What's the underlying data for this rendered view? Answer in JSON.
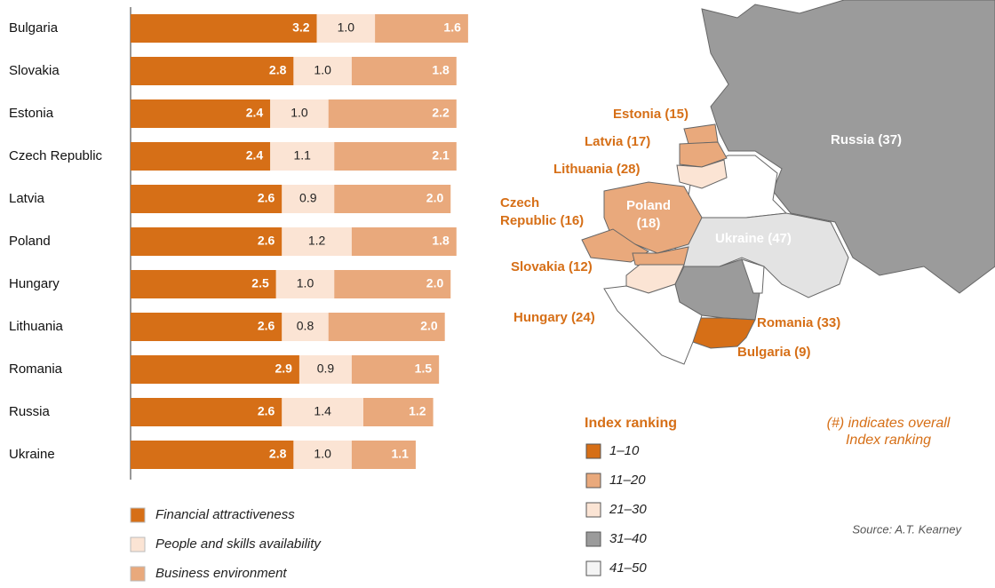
{
  "chart_data": {
    "type": "stacked-bar-horizontal",
    "categories": [
      "Bulgaria",
      "Slovakia",
      "Estonia",
      "Czech Republic",
      "Latvia",
      "Poland",
      "Hungary",
      "Lithuania",
      "Romania",
      "Russia",
      "Ukraine"
    ],
    "series": [
      {
        "name": "Financial attractiveness",
        "color": "#d66f17",
        "values": [
          3.2,
          2.8,
          2.4,
          2.4,
          2.6,
          2.6,
          2.5,
          2.6,
          2.9,
          2.6,
          2.8
        ],
        "value_labels": [
          "3.2",
          "2.8",
          "2.4",
          "2.4",
          "2.6",
          "2.6",
          "2.5",
          "2.6",
          "2.9",
          "2.6",
          "2.8"
        ]
      },
      {
        "name": "People and skills availability",
        "color": "#fbe4d4",
        "values": [
          1.0,
          1.0,
          1.0,
          1.1,
          0.9,
          1.2,
          1.0,
          0.8,
          0.9,
          1.4,
          1.0
        ],
        "value_labels": [
          "1.0",
          "1.0",
          "1.0",
          "1.1",
          "0.9",
          "1.2",
          "1.0",
          "0.8",
          "0.9",
          "1.4",
          "1.0"
        ]
      },
      {
        "name": "Business environment",
        "color": "#e9a97c",
        "values": [
          1.6,
          1.8,
          2.2,
          2.1,
          2.0,
          1.8,
          2.0,
          2.0,
          1.5,
          1.2,
          1.1
        ],
        "value_labels": [
          "1.6",
          "1.8",
          "2.2",
          "2.1",
          "2.0",
          "1.8",
          "2.0",
          "2.0",
          "1.5",
          "1.2",
          "1.1"
        ]
      }
    ],
    "xlim": [
      0,
      6
    ]
  },
  "map": {
    "labels": [
      {
        "lines": [
          "Estonia (15)"
        ]
      },
      {
        "lines": [
          "Latvia (17)"
        ]
      },
      {
        "lines": [
          "Lithuania (28)"
        ]
      },
      {
        "lines": [
          "Czech",
          "Republic (16)"
        ]
      },
      {
        "lines": [
          "Poland",
          "(18)"
        ]
      },
      {
        "lines": [
          "Slovakia (12)"
        ]
      },
      {
        "lines": [
          "Hungary (24)"
        ]
      },
      {
        "lines": [
          "Ukraine (47)"
        ]
      },
      {
        "lines": [
          "Romania (33)"
        ]
      },
      {
        "lines": [
          "Bulgaria (9)"
        ]
      },
      {
        "lines": [
          "Russia (37)"
        ]
      }
    ],
    "legend": {
      "title": "Index ranking",
      "items": [
        {
          "label": "1–10",
          "color": "#d66f17"
        },
        {
          "label": "11–20",
          "color": "#e9a97c"
        },
        {
          "label": "21–30",
          "color": "#fbe4d4"
        },
        {
          "label": "31–40",
          "color": "#9b9b9b"
        },
        {
          "label": "41–50",
          "color": "#f4f4f4"
        }
      ]
    },
    "note": [
      "(#) indicates overall",
      "Index ranking"
    ],
    "source": "Source: A.T. Kearney"
  }
}
